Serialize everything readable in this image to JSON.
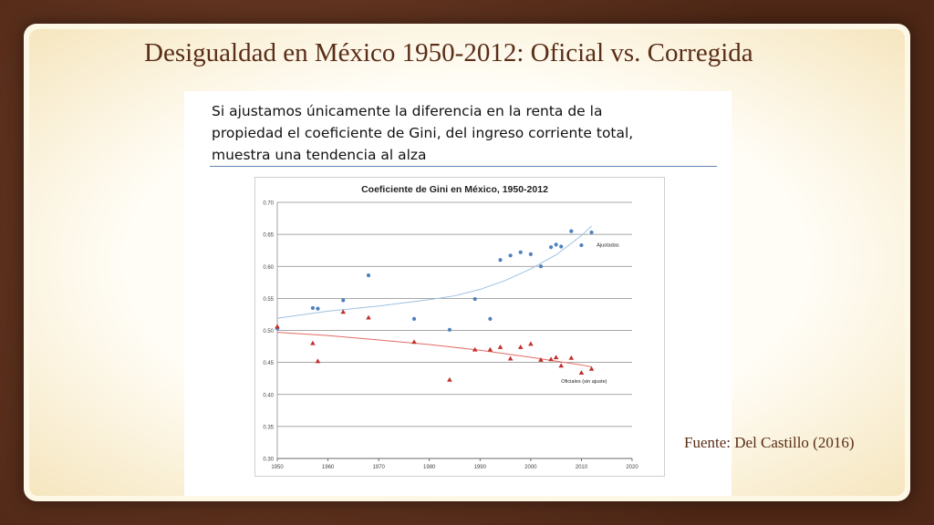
{
  "slide": {
    "title": "Desigualdad en México 1950-2012: Oficial vs. Corregida",
    "text_lines": [
      "Si ajustamos únicamente la diferencia en la renta de la",
      "propiedad el coeficiente de Gini, del ingreso corriente total,",
      "muestra una tendencia al alza"
    ],
    "source": "Fuente: Del Castillo (2016)"
  },
  "colors": {
    "title": "#5a2d17",
    "series_ajustadas": "#4f81bd",
    "series_oficiales": "#c0302b",
    "trend_ajustadas": "#9ec0e0",
    "trend_oficiales": "#e26a66"
  },
  "chart_data": {
    "type": "scatter",
    "title": "Coeficiente de Gini en México, 1950-2012",
    "xlabel": "",
    "ylabel": "",
    "xlim": [
      1950,
      2020
    ],
    "ylim": [
      0.3,
      0.7
    ],
    "x_ticks": [
      1950,
      1960,
      1970,
      1980,
      1990,
      2000,
      2010,
      2020
    ],
    "y_ticks": [
      0.3,
      0.35,
      0.4,
      0.45,
      0.5,
      0.55,
      0.6,
      0.65,
      0.7
    ],
    "y_tick_labels": [
      "0.30",
      "0.35",
      "0.40",
      "0.45",
      "0.50",
      "0.55",
      "0.60",
      "0.65",
      "0.70"
    ],
    "grid": true,
    "series": [
      {
        "name": "Ajustadas",
        "marker": "circle",
        "x": [
          1950,
          1957,
          1958,
          1963,
          1968,
          1977,
          1984,
          1989,
          1992,
          1994,
          1996,
          1998,
          2000,
          2002,
          2004,
          2005,
          2006,
          2008,
          2010,
          2012
        ],
        "y": [
          0.503,
          0.535,
          0.534,
          0.547,
          0.586,
          0.518,
          0.501,
          0.549,
          0.518,
          0.61,
          0.617,
          0.622,
          0.619,
          0.6,
          0.63,
          0.634,
          0.631,
          0.655,
          0.633,
          0.653
        ],
        "trend": {
          "x": [
            1950,
            1960,
            1970,
            1980,
            1985,
            1990,
            1995,
            2000,
            2005,
            2010,
            2012
          ],
          "y": [
            0.519,
            0.53,
            0.538,
            0.548,
            0.554,
            0.564,
            0.578,
            0.596,
            0.618,
            0.648,
            0.663
          ]
        }
      },
      {
        "name": "Oficiales (sin ajuste)",
        "marker": "triangle",
        "x": [
          1950,
          1957,
          1958,
          1963,
          1968,
          1977,
          1984,
          1989,
          1992,
          1994,
          1996,
          1998,
          2000,
          2002,
          2004,
          2005,
          2006,
          2008,
          2010,
          2012
        ],
        "y": [
          0.506,
          0.48,
          0.452,
          0.529,
          0.52,
          0.482,
          0.423,
          0.47,
          0.47,
          0.474,
          0.456,
          0.474,
          0.479,
          0.454,
          0.455,
          0.458,
          0.445,
          0.457,
          0.434,
          0.44
        ],
        "trend": {
          "x": [
            1950,
            1960,
            1970,
            1980,
            1990,
            2000,
            2005,
            2010,
            2012
          ],
          "y": [
            0.497,
            0.492,
            0.485,
            0.478,
            0.469,
            0.458,
            0.452,
            0.446,
            0.443
          ]
        }
      }
    ]
  }
}
